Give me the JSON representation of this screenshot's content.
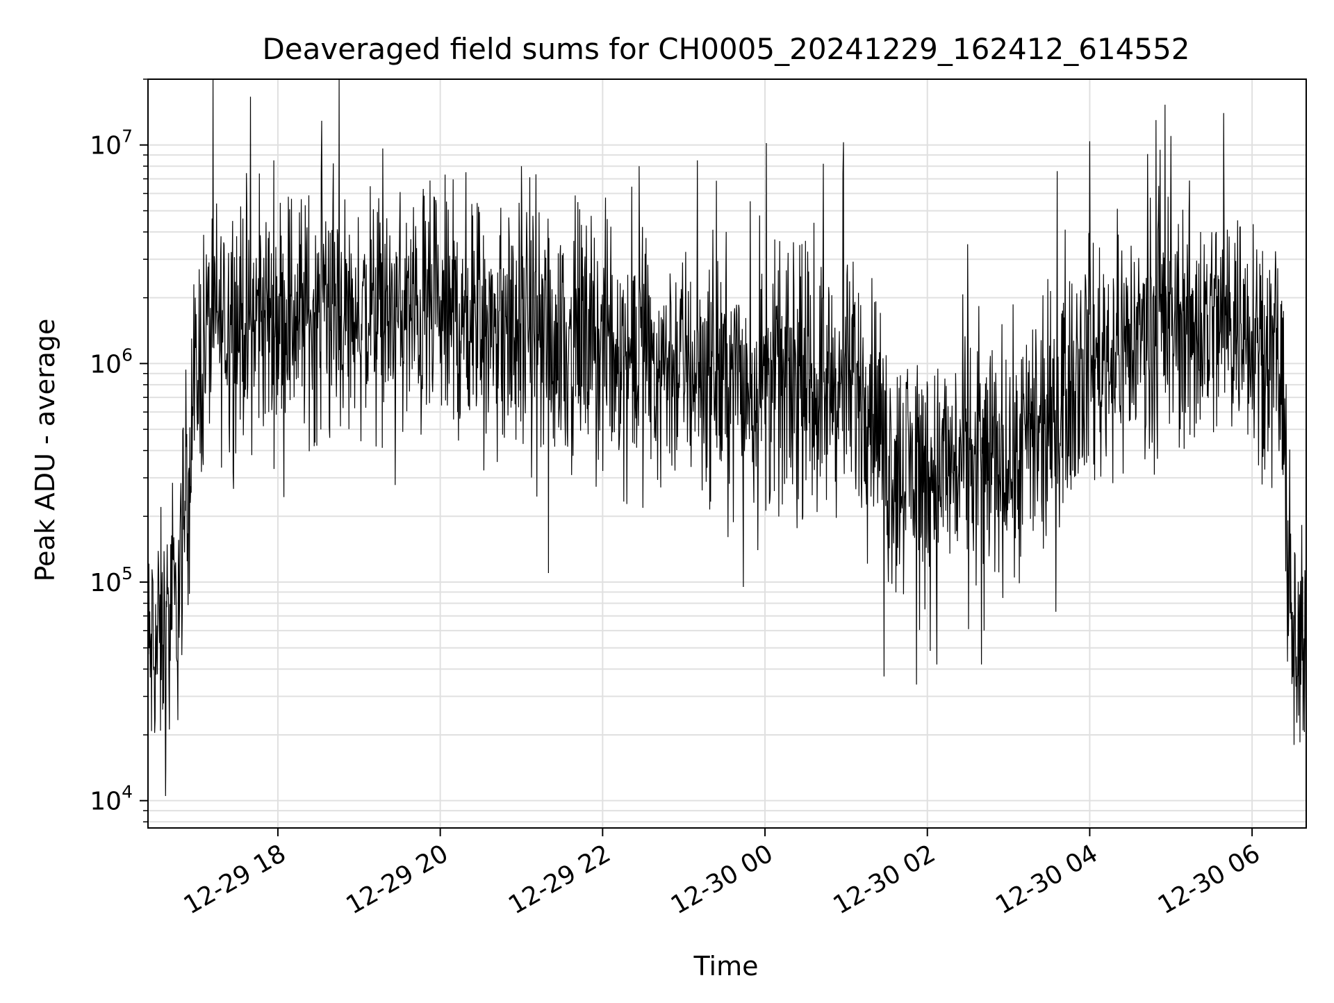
{
  "figure": {
    "title": "Deaveraged field sums for CH0005_20241229_162412_614552",
    "background": "#ffffff"
  },
  "chart_data": {
    "type": "line",
    "title": "Deaveraged field sums for CH0005_20241229_162412_614552",
    "xlabel": "Time",
    "ylabel": "Peak ADU - average",
    "y_scale": "log",
    "xlim": [
      "2024-12-29 16:24",
      "2024-12-30 06:40"
    ],
    "ylim": [
      7500,
      20000000
    ],
    "grid": true,
    "grid_minor": true,
    "line_color": "#000000",
    "grid_color": "#e0e0e0",
    "x_ticks": [
      {
        "value": "2024-12-29 18:00",
        "label": "12-29 18"
      },
      {
        "value": "2024-12-29 20:00",
        "label": "12-29 20"
      },
      {
        "value": "2024-12-29 22:00",
        "label": "12-29 22"
      },
      {
        "value": "2024-12-30 00:00",
        "label": "12-30 00"
      },
      {
        "value": "2024-12-30 02:00",
        "label": "12-30 02"
      },
      {
        "value": "2024-12-30 04:00",
        "label": "12-30 04"
      },
      {
        "value": "2024-12-30 06:00",
        "label": "12-30 06"
      }
    ],
    "y_ticks": [
      {
        "value": 10000,
        "base": "10",
        "exp": "4"
      },
      {
        "value": 100000,
        "base": "10",
        "exp": "5"
      },
      {
        "value": 1000000,
        "base": "10",
        "exp": "6"
      },
      {
        "value": 10000000,
        "base": "10",
        "exp": "7"
      }
    ],
    "series": [
      {
        "x_start": "2024-12-29 16:24",
        "x_end": "2024-12-30 06:40",
        "envelope": [
          {
            "x": "2024-12-29 16:24",
            "y": 45000
          },
          {
            "x": "2024-12-29 16:35",
            "y": 55000
          },
          {
            "x": "2024-12-29 16:45",
            "y": 70000
          },
          {
            "x": "2024-12-29 16:52",
            "y": 250000
          },
          {
            "x": "2024-12-29 17:00",
            "y": 900000
          },
          {
            "x": "2024-12-29 17:10",
            "y": 1500000
          },
          {
            "x": "2024-12-29 18:00",
            "y": 1700000
          },
          {
            "x": "2024-12-29 20:00",
            "y": 1600000
          },
          {
            "x": "2024-12-29 22:00",
            "y": 1200000
          },
          {
            "x": "2024-12-30 00:00",
            "y": 800000
          },
          {
            "x": "2024-12-30 01:20",
            "y": 750000
          },
          {
            "x": "2024-12-30 01:30",
            "y": 350000
          },
          {
            "x": "2024-12-30 02:00",
            "y": 320000
          },
          {
            "x": "2024-12-30 03:00",
            "y": 380000
          },
          {
            "x": "2024-12-30 03:30",
            "y": 450000
          },
          {
            "x": "2024-12-30 03:40",
            "y": 900000
          },
          {
            "x": "2024-12-30 05:00",
            "y": 1500000
          },
          {
            "x": "2024-12-30 06:00",
            "y": 1600000
          },
          {
            "x": "2024-12-30 06:20",
            "y": 1000000
          },
          {
            "x": "2024-12-30 06:27",
            "y": 150000
          },
          {
            "x": "2024-12-30 06:30",
            "y": 50000
          },
          {
            "x": "2024-12-30 06:40",
            "y": 40000
          }
        ],
        "spikes": [
          {
            "x": "2024-12-29 17:57",
            "y": 8500000
          },
          {
            "x": "2024-12-29 18:32",
            "y": 7400000
          },
          {
            "x": "2024-12-29 20:19",
            "y": 7500000
          },
          {
            "x": "2024-12-29 21:00",
            "y": 8000000
          },
          {
            "x": "2024-12-29 22:27",
            "y": 8000000
          },
          {
            "x": "2024-12-29 23:10",
            "y": 8500000
          },
          {
            "x": "2024-12-30 00:01",
            "y": 10200000
          },
          {
            "x": "2024-12-30 00:58",
            "y": 10300000
          },
          {
            "x": "2024-12-30 04:00",
            "y": 10400000
          },
          {
            "x": "2024-12-30 04:49",
            "y": 13000000
          },
          {
            "x": "2024-12-30 05:00",
            "y": 11000000
          },
          {
            "x": "2024-12-30 05:39",
            "y": 14000000
          }
        ],
        "dips": [
          {
            "x": "2024-12-29 16:37",
            "y": 10500
          },
          {
            "x": "2024-12-29 21:20",
            "y": 110000
          },
          {
            "x": "2024-12-29 23:44",
            "y": 95000
          },
          {
            "x": "2024-12-30 01:28",
            "y": 37000
          },
          {
            "x": "2024-12-30 01:52",
            "y": 34000
          },
          {
            "x": "2024-12-30 02:07",
            "y": 42000
          },
          {
            "x": "2024-12-30 02:40",
            "y": 42000
          },
          {
            "x": "2024-12-30 06:31",
            "y": 18000
          }
        ]
      }
    ]
  }
}
